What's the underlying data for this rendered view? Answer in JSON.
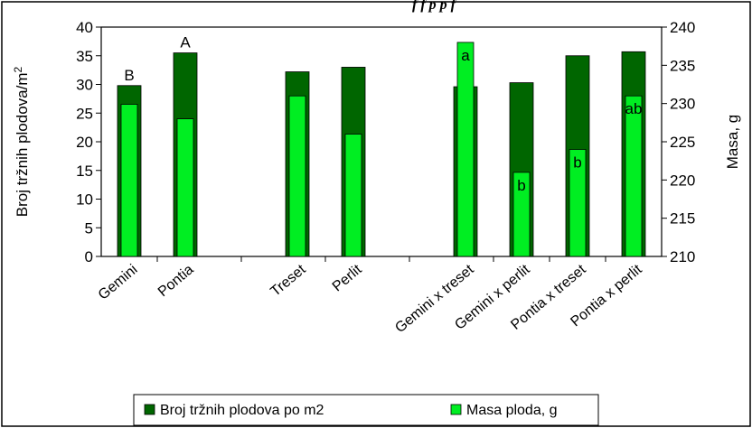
{
  "chart_data": {
    "type": "bar",
    "title_fragment": "f   f   p   p   f",
    "categories": [
      "Gemini",
      "Pontia",
      "Treset",
      "Perlit",
      "Gemini x treset",
      "Gemini x perlit",
      "Pontia x treset",
      "Pontia x perlit"
    ],
    "groups": [
      [
        0,
        1
      ],
      [
        2,
        3
      ],
      [
        4,
        5,
        6,
        7
      ]
    ],
    "series": [
      {
        "name": "Broj tržnih plodova po m2",
        "axis": "left",
        "color": "#006600",
        "values": [
          29.8,
          35.5,
          32.2,
          33.0,
          29.6,
          30.3,
          35.0,
          35.7
        ]
      },
      {
        "name": "Masa ploda, g",
        "axis": "right",
        "color": "#00ee22",
        "values": [
          229.9,
          228.0,
          231.0,
          226.0,
          238.0,
          221.0,
          224.0,
          231.0
        ]
      }
    ],
    "left_axis": {
      "label_prefix": "Broj tr",
      "label_zh": "ž",
      "label_suffix": "nih plodova/m",
      "label_sup": "2",
      "min": 0,
      "max": 40,
      "step": 5
    },
    "right_axis": {
      "label": "Masa, g",
      "min": 210,
      "max": 240,
      "step": 5
    },
    "significance_labels": [
      {
        "text": "B",
        "category": 0
      },
      {
        "text": "A",
        "category": 1
      },
      {
        "text": "a",
        "category": 4
      },
      {
        "text": "b",
        "category": 5
      },
      {
        "text": "b",
        "category": 6
      },
      {
        "text": "ab",
        "category": 7
      }
    ],
    "legend_position": "bottom"
  }
}
